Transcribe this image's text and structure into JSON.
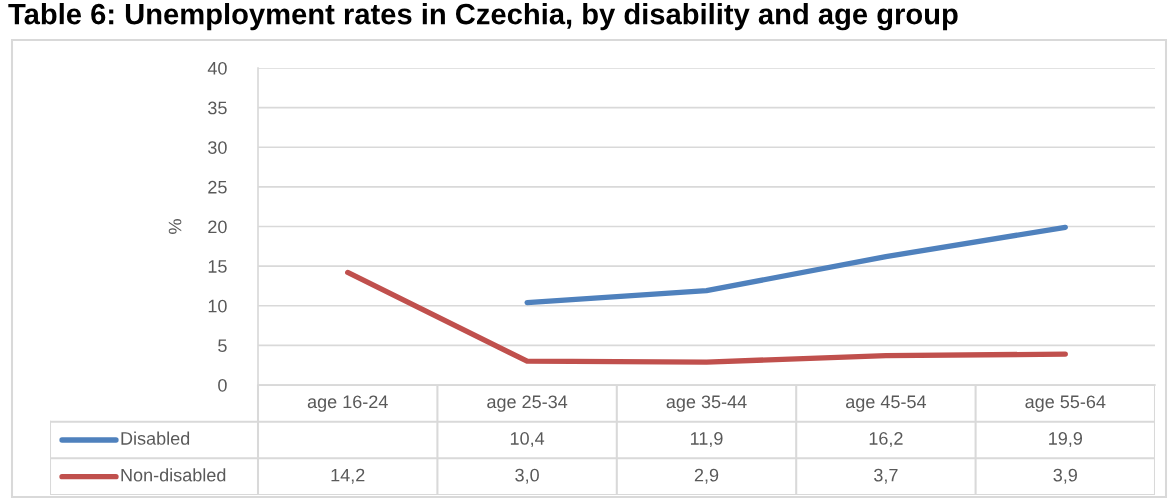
{
  "chart_data": {
    "type": "line",
    "title": "Table 6: Unemployment rates in Czechia, by disability and age group",
    "ylabel": "%",
    "categories": [
      "age 16-24",
      "age 25-34",
      "age 35-44",
      "age 45-54",
      "age 55-64"
    ],
    "series": [
      {
        "name": "Disabled",
        "color": "#4f81bd",
        "values": [
          null,
          10.4,
          11.9,
          16.2,
          19.9
        ],
        "value_labels": [
          null,
          "10,4",
          "11,9",
          "16,2",
          "19,9"
        ]
      },
      {
        "name": "Non-disabled",
        "color": "#c0504d",
        "values": [
          14.2,
          3.0,
          2.9,
          3.7,
          3.9
        ],
        "value_labels": [
          "14,2",
          "3,0",
          "2,9",
          "3,7",
          "3,9"
        ]
      }
    ],
    "ylim": [
      0,
      40
    ],
    "yticks": [
      0,
      5,
      10,
      15,
      20,
      25,
      30,
      35,
      40
    ],
    "grid": "y",
    "legend": "bottom",
    "line_style": "solid"
  }
}
